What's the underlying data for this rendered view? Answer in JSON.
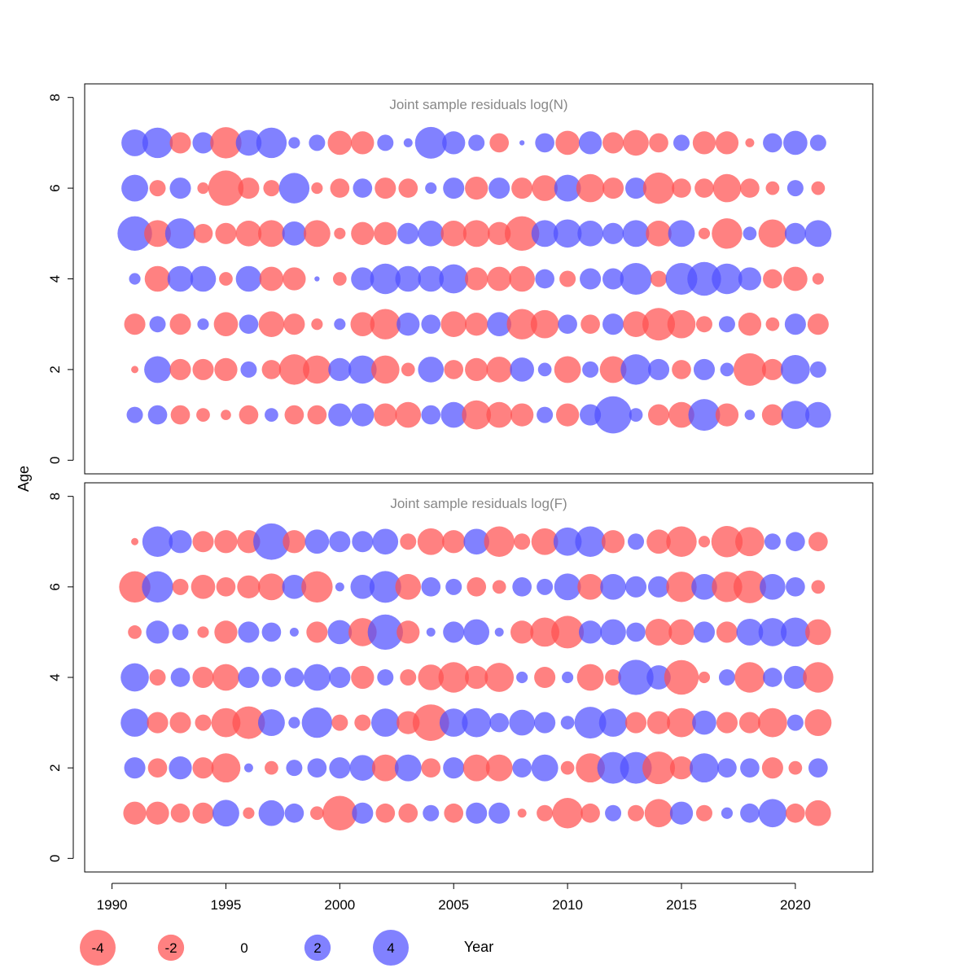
{
  "colors": {
    "negative": "#FF5050",
    "positive": "#5050FF",
    "frame": "#000000",
    "title": "#888888"
  },
  "chart_data": {
    "type": "scatter",
    "encoding": "bubble area proportional to absolute residual; red = negative, blue = positive",
    "xlabel": "Year",
    "ylabel": "Age",
    "xticks": [
      "1990",
      "1995",
      "2000",
      "2005",
      "2010",
      "2015",
      "2020"
    ],
    "yticks": [
      "0",
      "2",
      "4",
      "6",
      "8"
    ],
    "xlim": [
      1988.8,
      2023.4
    ],
    "ylim": [
      -0.3,
      8.3
    ],
    "years": [
      1991,
      1992,
      1993,
      1994,
      1995,
      1996,
      1997,
      1998,
      1999,
      2000,
      2001,
      2002,
      2003,
      2004,
      2005,
      2006,
      2007,
      2008,
      2009,
      2010,
      2011,
      2012,
      2013,
      2014,
      2015,
      2016,
      2017,
      2018,
      2019,
      2020,
      2021
    ],
    "ages": [
      1,
      2,
      3,
      4,
      5,
      6,
      7
    ],
    "legend": {
      "label": "Year",
      "items": [
        {
          "label": "-4",
          "value": -4
        },
        {
          "label": "-2",
          "value": -2
        },
        {
          "label": "0",
          "value": 0
        },
        {
          "label": "2",
          "value": 2
        },
        {
          "label": "4",
          "value": 4
        }
      ]
    },
    "panels": [
      {
        "title": "Joint sample residuals log(N)",
        "residuals": {
          "1": [
            1.0,
            1.4,
            -1.4,
            -0.7,
            -0.4,
            -1.4,
            0.7,
            -1.4,
            -1.4,
            2.0,
            2.0,
            -2.0,
            -2.5,
            1.4,
            2.5,
            -3.2,
            -2.5,
            -2.0,
            1.0,
            -2.0,
            1.7,
            5.2,
            0.7,
            -1.7,
            -2.5,
            3.8,
            -2.0,
            0.4,
            -1.7,
            3.0,
            2.5
          ],
          "2": [
            -0.2,
            2.7,
            -1.7,
            -1.7,
            -2.0,
            1.0,
            -1.4,
            -3.5,
            -3.0,
            2.0,
            3.0,
            -3.0,
            -0.7,
            2.5,
            -1.4,
            -2.0,
            -2.5,
            2.2,
            0.7,
            -2.7,
            1.0,
            -2.7,
            3.5,
            1.7,
            -1.4,
            1.7,
            0.7,
            -4.0,
            -1.7,
            3.2,
            1.0
          ],
          "3": [
            -1.7,
            1.0,
            -1.7,
            0.5,
            -2.2,
            1.4,
            -2.5,
            -1.7,
            -0.5,
            0.5,
            -2.2,
            -3.5,
            2.0,
            1.4,
            -2.5,
            -2.0,
            2.2,
            -3.5,
            -3.0,
            1.4,
            -1.4,
            1.7,
            -2.5,
            -4.0,
            -3.0,
            -1.0,
            1.0,
            -2.0,
            -0.7,
            1.7,
            -1.7
          ],
          "4": [
            0.5,
            -2.5,
            2.5,
            2.5,
            -0.7,
            2.5,
            -2.2,
            -2.0,
            0.1,
            -0.7,
            2.0,
            3.5,
            2.5,
            2.5,
            3.2,
            -2.0,
            -2.2,
            -2.5,
            1.4,
            -1.0,
            1.7,
            1.7,
            3.8,
            -1.0,
            3.8,
            4.3,
            3.5,
            2.0,
            -1.4,
            -2.2,
            -0.5
          ],
          "5": [
            4.5,
            -2.7,
            3.5,
            -1.4,
            -1.7,
            -2.5,
            -2.7,
            2.2,
            -2.7,
            -0.5,
            -2.0,
            -2.0,
            1.7,
            2.5,
            -2.5,
            -2.7,
            -2.0,
            -4.5,
            2.7,
            3.0,
            2.5,
            1.7,
            2.7,
            -2.5,
            2.7,
            -0.5,
            -3.5,
            0.7,
            -3.0,
            1.7,
            2.7
          ],
          "6": [
            2.7,
            -1.0,
            1.7,
            -0.5,
            -4.7,
            -1.7,
            -1.0,
            3.5,
            -0.5,
            -1.4,
            1.4,
            -1.7,
            -1.4,
            0.5,
            1.7,
            -2.0,
            1.7,
            -1.7,
            -2.5,
            2.7,
            -3.0,
            -1.7,
            1.7,
            -3.7,
            -1.4,
            -1.4,
            -3.0,
            -1.4,
            -0.7,
            1.0,
            -0.7
          ],
          "7": [
            2.7,
            3.5,
            -1.7,
            1.7,
            -3.7,
            2.5,
            3.5,
            0.5,
            1.0,
            -2.2,
            -2.0,
            1.0,
            0.3,
            3.8,
            2.0,
            1.0,
            -1.4,
            0.1,
            1.4,
            -2.2,
            2.0,
            -1.7,
            -2.5,
            -1.4,
            1.0,
            -2.0,
            -2.0,
            -0.3,
            1.4,
            2.2,
            1.0
          ]
        }
      },
      {
        "title": "Joint sample residuals log(F)",
        "residuals": {
          "1": [
            -2.0,
            -2.0,
            -1.4,
            -1.7,
            2.7,
            -0.5,
            2.5,
            1.4,
            -0.7,
            -4.5,
            1.7,
            -1.4,
            -1.4,
            1.0,
            -1.4,
            1.7,
            1.7,
            -0.3,
            -1.0,
            -3.5,
            -1.4,
            1.0,
            -1.0,
            -3.0,
            2.0,
            -1.0,
            0.5,
            1.4,
            3.0,
            -1.4,
            -2.5
          ],
          "2": [
            1.7,
            -1.4,
            2.0,
            -1.7,
            -3.2,
            0.3,
            -0.7,
            1.0,
            1.4,
            1.7,
            2.5,
            -2.7,
            2.7,
            -1.4,
            1.7,
            -2.7,
            -2.7,
            1.4,
            2.7,
            -0.7,
            -3.2,
            3.8,
            3.8,
            -4.0,
            -2.0,
            3.2,
            1.4,
            1.4,
            -1.7,
            -0.7,
            1.4
          ],
          "3": [
            3.0,
            -1.7,
            -1.7,
            -1.0,
            -3.2,
            -4.0,
            2.7,
            0.5,
            3.5,
            -1.0,
            -1.0,
            3.0,
            -2.0,
            -5.0,
            3.0,
            3.2,
            1.4,
            2.5,
            1.7,
            0.7,
            3.8,
            3.0,
            -1.7,
            -2.0,
            -3.2,
            2.2,
            -1.7,
            -1.7,
            -3.2,
            1.0,
            -2.7
          ],
          "4": [
            3.0,
            -1.0,
            1.4,
            -1.7,
            -2.7,
            1.7,
            1.4,
            1.4,
            2.7,
            1.7,
            -2.0,
            1.0,
            -1.0,
            -2.5,
            -3.5,
            -2.0,
            -3.2,
            0.5,
            -1.7,
            0.5,
            -2.7,
            -1.0,
            4.7,
            2.2,
            -4.5,
            -0.5,
            1.0,
            -3.5,
            1.4,
            2.0,
            -3.5
          ],
          "5": [
            -0.7,
            2.0,
            1.0,
            -0.5,
            -2.0,
            1.7,
            1.4,
            0.3,
            -1.7,
            2.2,
            -3.0,
            4.7,
            -2.0,
            0.3,
            1.7,
            2.5,
            0.3,
            -2.0,
            -3.2,
            -4.0,
            2.0,
            2.5,
            1.4,
            -2.7,
            -2.5,
            1.7,
            -1.7,
            2.7,
            3.0,
            3.2,
            -2.5
          ],
          "6": [
            -3.7,
            3.7,
            -1.0,
            -2.2,
            -1.4,
            -2.0,
            -2.7,
            2.2,
            -3.7,
            0.3,
            2.2,
            3.8,
            -2.5,
            1.4,
            1.0,
            -1.4,
            -0.7,
            1.4,
            1.0,
            2.7,
            -2.5,
            2.5,
            1.7,
            1.7,
            -3.5,
            2.5,
            -3.5,
            -4.0,
            2.5,
            1.4,
            -0.7
          ],
          "7": [
            -0.2,
            3.5,
            2.0,
            -1.7,
            -2.0,
            -2.0,
            5.0,
            -2.0,
            2.2,
            1.7,
            1.7,
            2.5,
            -1.0,
            -2.7,
            -2.0,
            2.5,
            -3.5,
            -1.0,
            -2.7,
            3.0,
            3.5,
            -2.0,
            1.0,
            -2.2,
            -3.5,
            -0.5,
            -3.7,
            -3.2,
            1.0,
            1.4,
            -1.4
          ]
        }
      }
    ]
  }
}
